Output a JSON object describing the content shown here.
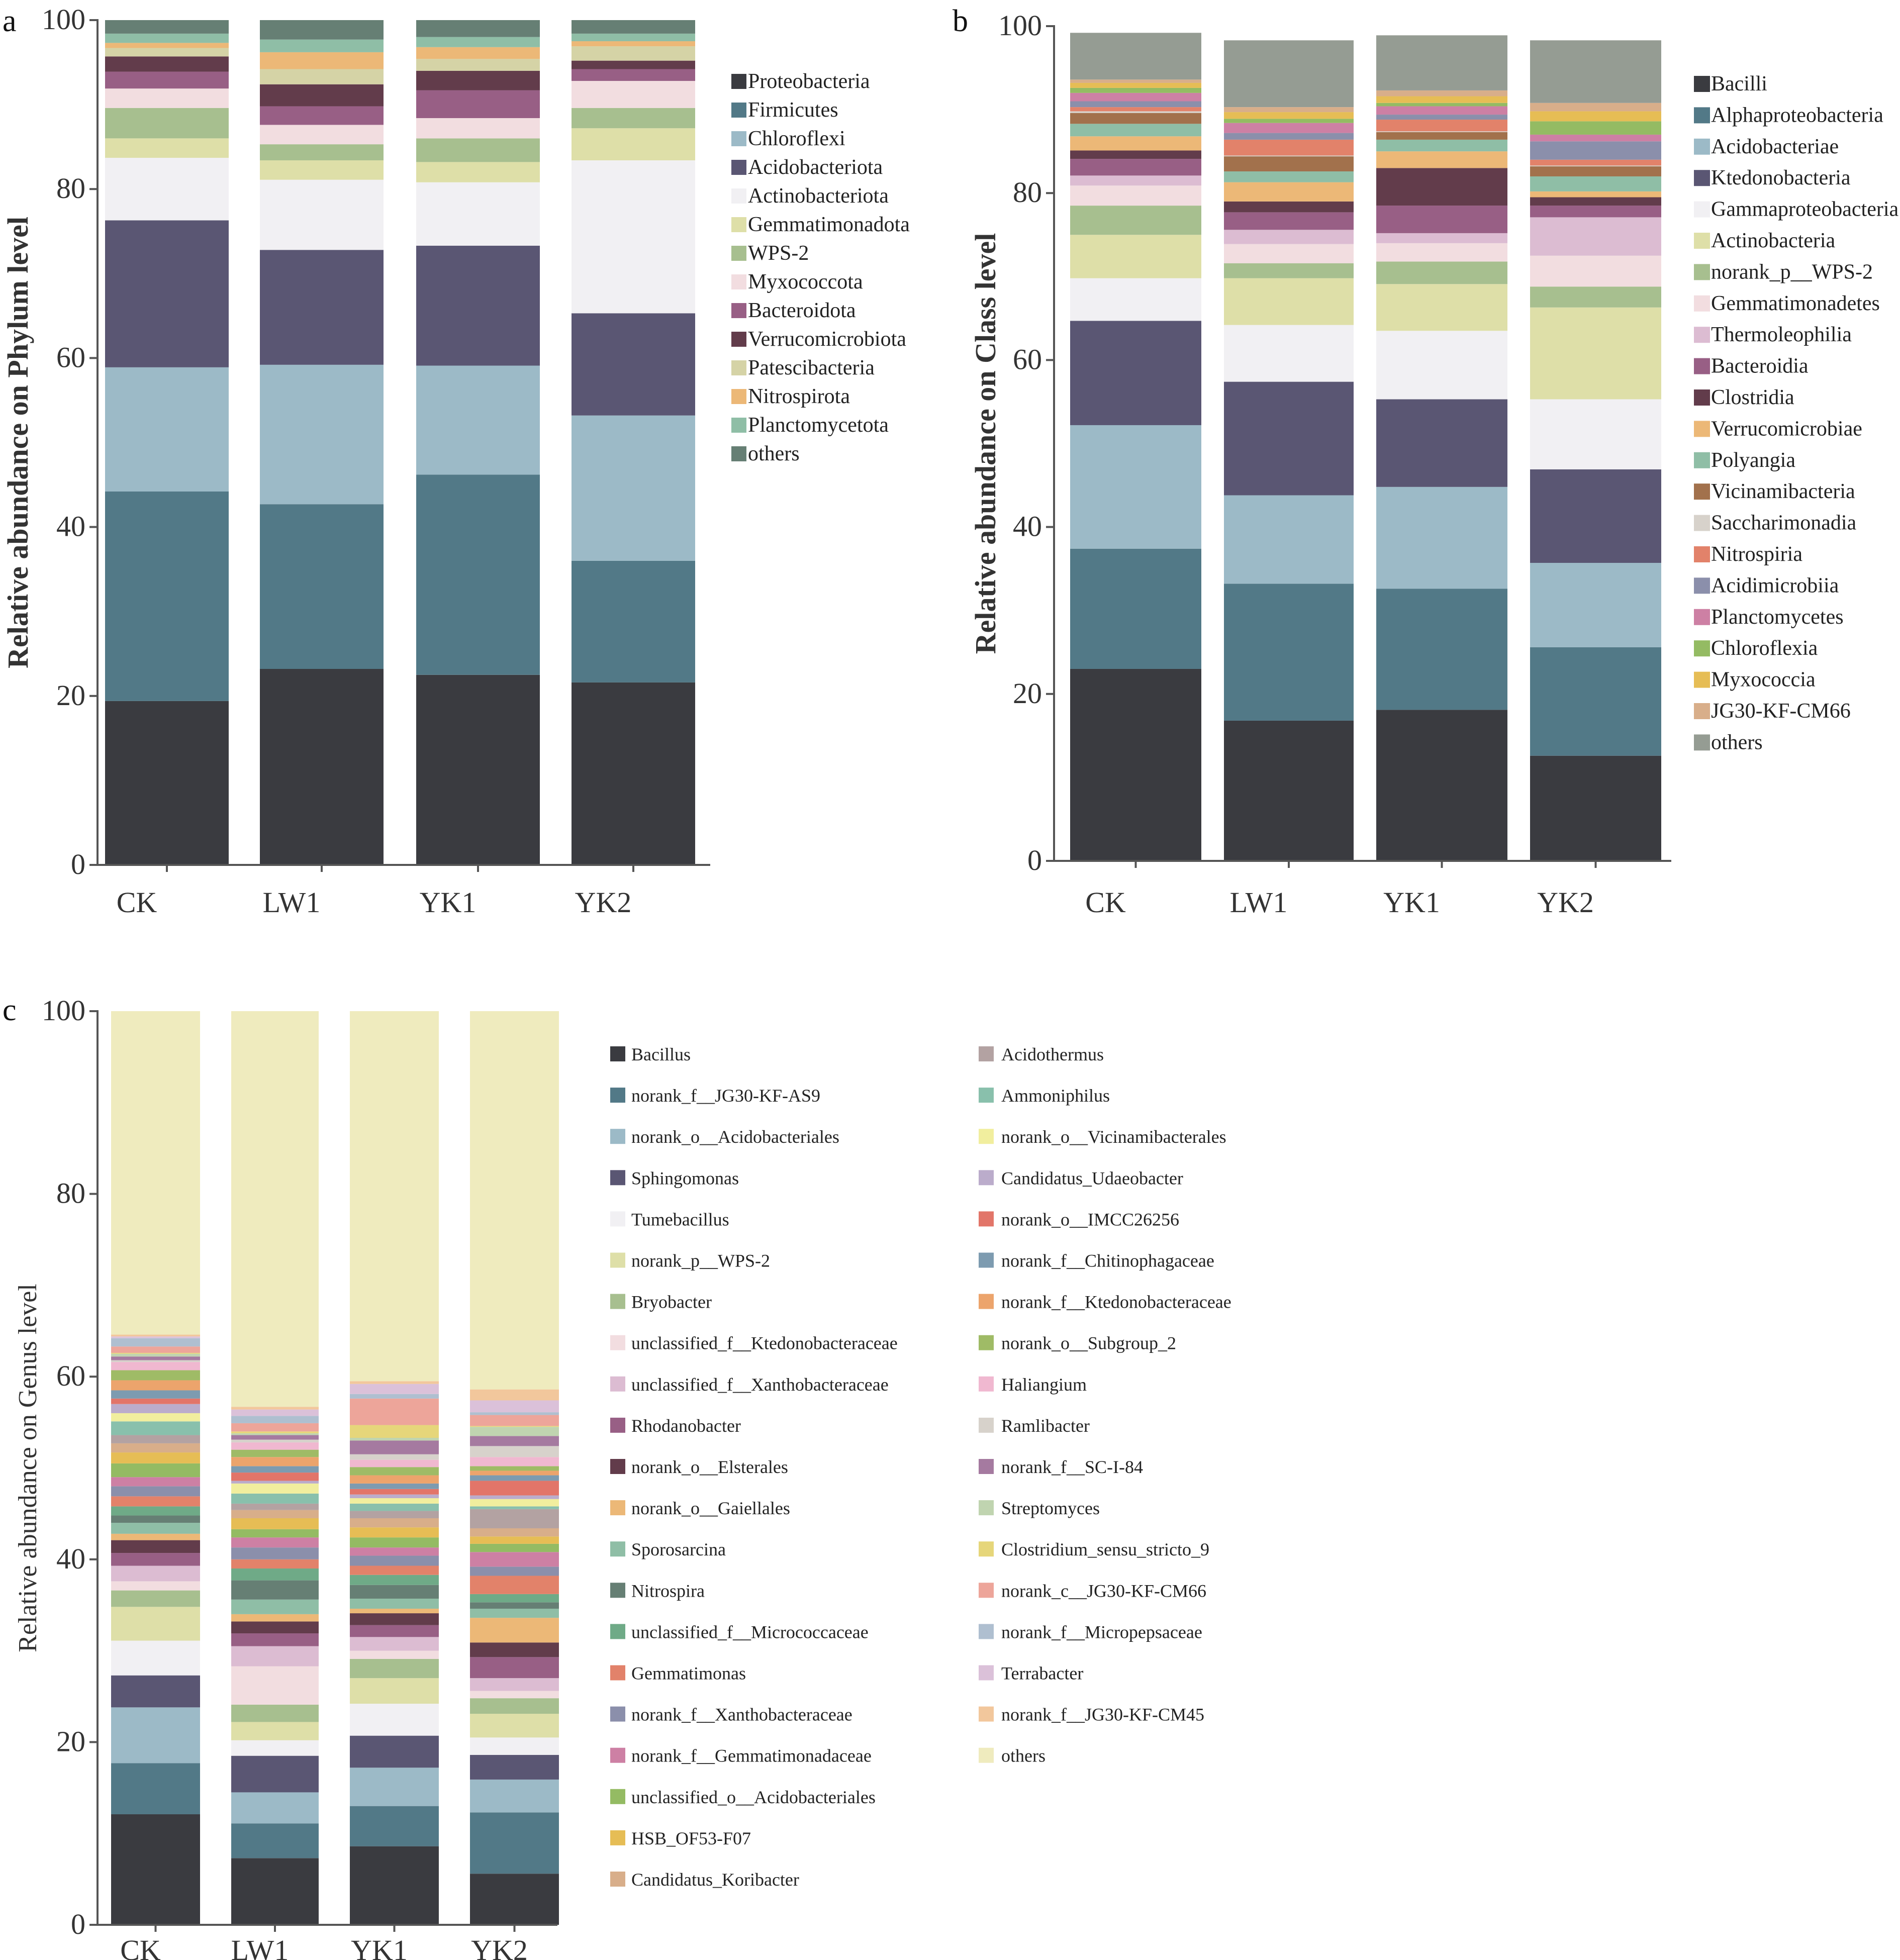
{
  "chart_data": [
    {
      "panel_label": "a",
      "type": "bar",
      "stacked": true,
      "ylabel": "Relative abundance on Phylum level",
      "ylim": [
        0,
        100
      ],
      "yticks": [
        "0",
        "20",
        "40",
        "60",
        "80",
        "100"
      ],
      "categories": [
        "CK",
        "LW1",
        "YK1",
        "YK2"
      ],
      "legend_position": "right",
      "series": [
        {
          "name": "Proteobacteria",
          "color": "#3a3b40",
          "values": [
            19.4,
            23.2,
            22.5,
            21.6
          ]
        },
        {
          "name": "Firmicutes",
          "color": "#527987",
          "values": [
            24.8,
            19.5,
            23.7,
            14.4
          ]
        },
        {
          "name": "Chloroflexi",
          "color": "#9cbac7",
          "values": [
            14.7,
            16.5,
            12.9,
            17.2
          ]
        },
        {
          "name": "Acidobacteriota",
          "color": "#5a5673",
          "values": [
            17.4,
            13.6,
            14.2,
            12.1
          ]
        },
        {
          "name": "Actinobacteriota",
          "color": "#f1f0f3",
          "values": [
            7.4,
            8.3,
            7.5,
            18.1
          ]
        },
        {
          "name": "Gemmatimonadota",
          "color": "#dedfa8",
          "values": [
            2.3,
            2.3,
            2.4,
            3.8
          ]
        },
        {
          "name": "WPS-2",
          "color": "#a7bf8f",
          "values": [
            3.6,
            1.9,
            2.8,
            2.4
          ]
        },
        {
          "name": "Myxococcota",
          "color": "#f2dde0",
          "values": [
            2.3,
            2.3,
            2.4,
            3.2
          ]
        },
        {
          "name": "Bacteroidota",
          "color": "#985f85",
          "values": [
            2.0,
            2.2,
            3.3,
            1.4
          ]
        },
        {
          "name": "Verrucomicrobiota",
          "color": "#623c4b",
          "values": [
            1.8,
            2.6,
            2.3,
            1.0
          ]
        },
        {
          "name": "Patescibacteria",
          "color": "#d5d3a6",
          "values": [
            1.0,
            1.8,
            1.4,
            1.7
          ]
        },
        {
          "name": "Nitrospirota",
          "color": "#ecb877",
          "values": [
            0.6,
            2.0,
            1.4,
            0.6
          ]
        },
        {
          "name": "Planctomycetota",
          "color": "#8fbea6",
          "values": [
            1.1,
            1.5,
            1.2,
            0.9
          ]
        },
        {
          "name": "others",
          "color": "#667f74",
          "values": [
            1.6,
            2.3,
            2.0,
            1.6
          ]
        }
      ]
    },
    {
      "panel_label": "b",
      "type": "bar",
      "stacked": true,
      "ylabel": "Relative abundance on Class level",
      "ylim": [
        0,
        100
      ],
      "yticks": [
        "0",
        "20",
        "40",
        "60",
        "80",
        "100"
      ],
      "categories": [
        "CK",
        "LW1",
        "YK1",
        "YK2"
      ],
      "legend_position": "right",
      "series": [
        {
          "name": "Bacilli",
          "color": "#3a3b40",
          "values": [
            23.0,
            16.8,
            18.1,
            12.6
          ]
        },
        {
          "name": "Alphaproteobacteria",
          "color": "#527987",
          "values": [
            14.4,
            16.4,
            14.5,
            13.0
          ]
        },
        {
          "name": "Acidobacteriae",
          "color": "#9cbac7",
          "values": [
            14.8,
            10.6,
            12.2,
            10.1
          ]
        },
        {
          "name": "Ktedonobacteria",
          "color": "#5a5673",
          "values": [
            12.5,
            13.6,
            10.5,
            11.2
          ]
        },
        {
          "name": "Gammaproteobacteria",
          "color": "#f1f0f3",
          "values": [
            5.1,
            6.8,
            8.2,
            8.4
          ]
        },
        {
          "name": "Actinobacteria",
          "color": "#dedfa8",
          "values": [
            5.2,
            5.6,
            5.6,
            11.0
          ]
        },
        {
          "name": "norank_p__WPS-2",
          "color": "#a7bf8f",
          "values": [
            3.5,
            1.8,
            2.7,
            2.5
          ]
        },
        {
          "name": "Gemmatimonadetes",
          "color": "#f2dde0",
          "values": [
            2.4,
            2.3,
            2.2,
            3.7
          ]
        },
        {
          "name": "Thermoleophilia",
          "color": "#dcbcd2",
          "values": [
            1.2,
            1.7,
            1.2,
            4.6
          ]
        },
        {
          "name": "Bacteroidia",
          "color": "#985f85",
          "values": [
            2.0,
            2.1,
            3.3,
            1.4
          ]
        },
        {
          "name": "Clostridia",
          "color": "#623c4b",
          "values": [
            1.0,
            1.3,
            4.5,
            1.0
          ]
        },
        {
          "name": "Verrucomicrobiae",
          "color": "#ecb877",
          "values": [
            1.7,
            2.3,
            2.0,
            0.7
          ]
        },
        {
          "name": "Polyangia",
          "color": "#8fbea6",
          "values": [
            1.5,
            1.3,
            1.4,
            1.8
          ]
        },
        {
          "name": "Vicinamibacteria",
          "color": "#a2714c",
          "values": [
            1.3,
            1.8,
            0.9,
            1.2
          ]
        },
        {
          "name": "Saccharimonadia",
          "color": "#d7d2cb",
          "values": [
            0.2,
            0.1,
            0.1,
            0.1
          ]
        },
        {
          "name": "Nitrospiria",
          "color": "#e2826a",
          "values": [
            0.5,
            1.9,
            1.4,
            0.7
          ]
        },
        {
          "name": "Acidimicrobiia",
          "color": "#8b8fab",
          "values": [
            0.7,
            0.8,
            0.6,
            2.2
          ]
        },
        {
          "name": "Planctomycetes",
          "color": "#cd80a4",
          "values": [
            1.0,
            1.2,
            1.0,
            0.8
          ]
        },
        {
          "name": "Chloroflexia",
          "color": "#94bb63",
          "values": [
            0.6,
            0.5,
            0.4,
            1.6
          ]
        },
        {
          "name": "Myxococcia",
          "color": "#e6bd55",
          "values": [
            0.6,
            0.8,
            0.8,
            1.2
          ]
        },
        {
          "name": "JG30-KF-CM66",
          "color": "#d8ae8a",
          "values": [
            0.4,
            0.6,
            0.7,
            1.0
          ]
        },
        {
          "name": "others",
          "color": "#959c93",
          "values": [
            5.6,
            8.0,
            6.6,
            7.5
          ]
        }
      ]
    },
    {
      "panel_label": "c",
      "type": "bar",
      "stacked": true,
      "ylabel": "Relative abundance on Genus level",
      "ylim": [
        0,
        100
      ],
      "yticks": [
        "0",
        "20",
        "40",
        "60",
        "80",
        "100"
      ],
      "categories": [
        "CK",
        "LW1",
        "YK1",
        "YK2"
      ],
      "legend_position": "right",
      "series": [
        {
          "name": "Bacillus",
          "color": "#3a3b40",
          "values": [
            12.1,
            7.3,
            8.6,
            5.6
          ]
        },
        {
          "name": "norank_f__JG30-KF-AS9",
          "color": "#527987",
          "values": [
            5.6,
            3.8,
            4.4,
            6.7
          ]
        },
        {
          "name": "norank_o__Acidobacteriales",
          "color": "#9cbac7",
          "values": [
            6.1,
            3.4,
            4.2,
            3.6
          ]
        },
        {
          "name": "Sphingomonas",
          "color": "#5a5673",
          "values": [
            3.5,
            4.0,
            3.5,
            2.7
          ]
        },
        {
          "name": "Tumebacillus",
          "color": "#f1f0f3",
          "values": [
            3.8,
            1.7,
            3.5,
            1.9
          ]
        },
        {
          "name": "norank_p__WPS-2",
          "color": "#dedfa8",
          "values": [
            3.7,
            2.0,
            2.8,
            2.6
          ]
        },
        {
          "name": "Bryobacter",
          "color": "#a7bf8f",
          "values": [
            1.8,
            1.9,
            2.1,
            1.7
          ]
        },
        {
          "name": "unclassified_f__Ktedonobacteraceae",
          "color": "#f2dde0",
          "values": [
            1.0,
            4.2,
            0.9,
            0.8
          ]
        },
        {
          "name": "unclassified_f__Xanthobacteraceae",
          "color": "#dcbcd2",
          "values": [
            1.7,
            2.2,
            1.5,
            1.4
          ]
        },
        {
          "name": "Rhodanobacter",
          "color": "#985f85",
          "values": [
            1.4,
            1.4,
            1.3,
            2.3
          ]
        },
        {
          "name": "norank_o__Elsterales",
          "color": "#623c4b",
          "values": [
            1.4,
            1.3,
            1.3,
            1.6
          ]
        },
        {
          "name": "norank_o__Gaiellales",
          "color": "#ecb877",
          "values": [
            0.7,
            0.8,
            0.5,
            2.7
          ]
        },
        {
          "name": "Sporosarcina",
          "color": "#8fbea6",
          "values": [
            1.2,
            1.6,
            1.1,
            1.0
          ]
        },
        {
          "name": "Nitrospira",
          "color": "#667f74",
          "values": [
            0.8,
            2.1,
            1.5,
            0.7
          ]
        },
        {
          "name": "unclassified_f__Micrococcaceae",
          "color": "#6faa87",
          "values": [
            1.0,
            1.3,
            1.1,
            0.9
          ]
        },
        {
          "name": "Gemmatimonas",
          "color": "#e2826a",
          "values": [
            1.1,
            1.0,
            1.0,
            2.0
          ]
        },
        {
          "name": "norank_f__Xanthobacteraceae",
          "color": "#8b8fab",
          "values": [
            1.1,
            1.3,
            1.1,
            1.0
          ]
        },
        {
          "name": "norank_f__Gemmatimonadaceae",
          "color": "#cd80a4",
          "values": [
            1.0,
            1.1,
            0.9,
            1.6
          ]
        },
        {
          "name": "unclassified_o__Acidobacteriales",
          "color": "#94bb63",
          "values": [
            1.5,
            0.9,
            1.1,
            0.9
          ]
        },
        {
          "name": "HSB_OF53-F07",
          "color": "#e6bd55",
          "values": [
            1.2,
            1.2,
            1.1,
            0.8
          ]
        },
        {
          "name": "Candidatus_Koribacter",
          "color": "#d8ae8a",
          "values": [
            1.0,
            0.9,
            1.0,
            0.9
          ]
        },
        {
          "name": "Acidothermus",
          "color": "#b3a2a2",
          "values": [
            0.9,
            0.7,
            0.8,
            2.1
          ]
        },
        {
          "name": "Ammoniphilus",
          "color": "#89c0ac",
          "values": [
            1.5,
            1.1,
            0.8,
            0.3
          ]
        },
        {
          "name": "norank_o__Vicinamibacterales",
          "color": "#f1ee9e",
          "values": [
            0.9,
            1.1,
            0.6,
            0.8
          ]
        },
        {
          "name": "Candidatus_Udaeobacter",
          "color": "#bbaccb",
          "values": [
            1.0,
            0.3,
            0.4,
            0.4
          ]
        },
        {
          "name": "norank_o__IMCC26256",
          "color": "#e27569",
          "values": [
            0.6,
            0.9,
            0.6,
            1.6
          ]
        },
        {
          "name": "norank_f__Chitinophagaceae",
          "color": "#7d9bb0",
          "values": [
            0.9,
            0.7,
            0.6,
            0.6
          ]
        },
        {
          "name": "norank_f__Ktedonobacteraceae",
          "color": "#eca46c",
          "values": [
            1.1,
            1.0,
            0.9,
            0.5
          ]
        },
        {
          "name": "norank_o__Subgroup_2",
          "color": "#9fbb66",
          "values": [
            1.1,
            0.8,
            0.9,
            0.5
          ]
        },
        {
          "name": "Haliangium",
          "color": "#f0b8d0",
          "values": [
            0.9,
            0.8,
            0.8,
            1.0
          ]
        },
        {
          "name": "Ramlibacter",
          "color": "#d7d2cb",
          "values": [
            0.2,
            0.3,
            0.6,
            1.2
          ]
        },
        {
          "name": "norank_f__SC-I-84",
          "color": "#a57aa0",
          "values": [
            0.4,
            0.5,
            1.5,
            1.1
          ]
        },
        {
          "name": "Streptomyces",
          "color": "#c0d4b0",
          "values": [
            0.3,
            0.2,
            0.3,
            1.0
          ]
        },
        {
          "name": "Clostridium_sensu_stricto_9",
          "color": "#e6d67a",
          "values": [
            0.1,
            0.2,
            1.4,
            0.1
          ]
        },
        {
          "name": "norank_c__JG30-KF-CM66",
          "color": "#eda59a",
          "values": [
            0.7,
            0.9,
            2.9,
            1.2
          ]
        },
        {
          "name": "norank_f__Micropepsaceae",
          "color": "#afbfd0",
          "values": [
            0.9,
            0.8,
            0.5,
            0.3
          ]
        },
        {
          "name": "Terrabacter",
          "color": "#dbc1d9",
          "values": [
            0.2,
            0.7,
            1.1,
            1.3
          ]
        },
        {
          "name": "norank_f__JG30-KF-CM45",
          "color": "#f2c79c",
          "values": [
            0.2,
            0.3,
            0.3,
            1.2
          ]
        },
        {
          "name": "others",
          "color": "#efebbe",
          "values": [
            35.4,
            43.3,
            40.5,
            41.4
          ]
        }
      ]
    }
  ]
}
